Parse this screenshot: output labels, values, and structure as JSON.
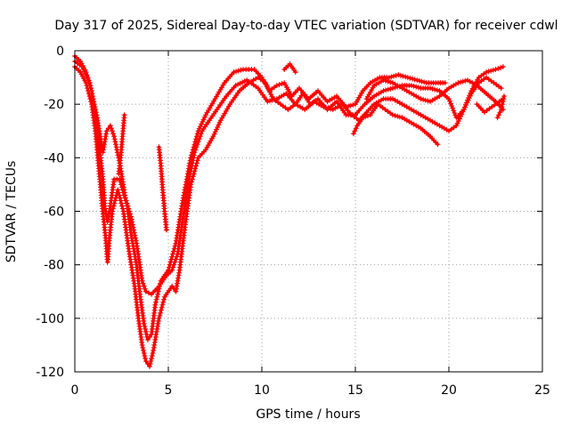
{
  "chart_data": {
    "type": "scatter",
    "title": "Day 317 of 2025, Sidereal Day-to-day VTEC variation (SDTVAR) for receiver cdwl",
    "xlabel": "GPS time / hours",
    "ylabel": "SDTVAR / TECUs",
    "xlim": [
      0,
      25
    ],
    "ylim": [
      -120,
      0
    ],
    "xticks": [
      0,
      5,
      10,
      15,
      20,
      25
    ],
    "yticks": [
      0,
      -20,
      -40,
      -60,
      -80,
      -100,
      -120
    ],
    "grid": true,
    "marker": "+",
    "color": "#ff0000",
    "series": [
      {
        "name": "trace-1",
        "points": [
          [
            0,
            -2
          ],
          [
            0.3,
            -4
          ],
          [
            0.6,
            -8
          ],
          [
            0.9,
            -15
          ],
          [
            1.1,
            -25
          ],
          [
            1.3,
            -35
          ],
          [
            1.5,
            -48
          ],
          [
            1.6,
            -58
          ],
          [
            1.75,
            -64
          ],
          [
            1.9,
            -58
          ],
          [
            2.1,
            -48
          ],
          [
            2.4,
            -48
          ],
          [
            2.8,
            -58
          ],
          [
            3.0,
            -68
          ],
          [
            3.3,
            -80
          ],
          [
            3.5,
            -92
          ],
          [
            3.7,
            -102
          ],
          [
            3.9,
            -108
          ],
          [
            4.1,
            -106
          ],
          [
            4.3,
            -95
          ],
          [
            4.6,
            -86
          ],
          [
            5.0,
            -82
          ],
          [
            5.4,
            -72
          ],
          [
            5.8,
            -55
          ],
          [
            6.2,
            -40
          ],
          [
            6.6,
            -30
          ],
          [
            7.0,
            -24
          ],
          [
            7.5,
            -18
          ],
          [
            8.0,
            -12
          ],
          [
            8.5,
            -8
          ],
          [
            9.0,
            -7
          ],
          [
            9.6,
            -7
          ],
          [
            10.0,
            -10
          ],
          [
            10.4,
            -15
          ],
          [
            10.8,
            -13
          ],
          [
            11.2,
            -12
          ],
          [
            11.6,
            -17
          ],
          [
            12.0,
            -14
          ],
          [
            12.5,
            -18
          ],
          [
            13.0,
            -15
          ],
          [
            13.5,
            -19
          ],
          [
            14.0,
            -17
          ],
          [
            14.5,
            -21
          ],
          [
            15.0,
            -20
          ],
          [
            15.4,
            -15
          ],
          [
            15.8,
            -12
          ],
          [
            16.3,
            -10
          ],
          [
            16.8,
            -10
          ],
          [
            17.3,
            -9
          ],
          [
            17.8,
            -10
          ],
          [
            18.3,
            -11
          ],
          [
            18.8,
            -12
          ],
          [
            19.3,
            -12
          ],
          [
            19.8,
            -12
          ]
        ]
      },
      {
        "name": "trace-2",
        "points": [
          [
            0,
            -6
          ],
          [
            0.3,
            -8
          ],
          [
            0.6,
            -12
          ],
          [
            0.9,
            -20
          ],
          [
            1.1,
            -30
          ],
          [
            1.3,
            -45
          ],
          [
            1.5,
            -60
          ],
          [
            1.65,
            -70
          ],
          [
            1.75,
            -79
          ],
          [
            1.85,
            -70
          ],
          [
            2.0,
            -60
          ],
          [
            2.3,
            -52
          ],
          [
            2.6,
            -60
          ],
          [
            2.9,
            -75
          ],
          [
            3.2,
            -88
          ],
          [
            3.4,
            -100
          ],
          [
            3.6,
            -110
          ],
          [
            3.8,
            -116
          ],
          [
            4.0,
            -118
          ],
          [
            4.2,
            -112
          ],
          [
            4.5,
            -100
          ],
          [
            4.8,
            -92
          ],
          [
            5.2,
            -88
          ],
          [
            5.4,
            -90
          ],
          [
            5.6,
            -82
          ],
          [
            5.9,
            -65
          ],
          [
            6.2,
            -50
          ],
          [
            6.6,
            -40
          ],
          [
            7.0,
            -37
          ],
          [
            7.4,
            -32
          ],
          [
            7.8,
            -26
          ],
          [
            8.3,
            -20
          ],
          [
            8.8,
            -15
          ],
          [
            9.3,
            -12
          ],
          [
            9.8,
            -10
          ],
          [
            10.2,
            -12
          ],
          [
            10.6,
            -18
          ],
          [
            11.0,
            -20
          ],
          [
            11.4,
            -22
          ],
          [
            11.8,
            -20
          ],
          [
            12.2,
            -16
          ],
          [
            12.6,
            -20
          ],
          [
            13.0,
            -18
          ],
          [
            13.5,
            -22
          ],
          [
            14.0,
            -19
          ],
          [
            14.5,
            -24
          ],
          [
            15.0,
            -24
          ],
          [
            15.5,
            -20
          ],
          [
            16.0,
            -17
          ],
          [
            16.5,
            -15
          ],
          [
            17.0,
            -14
          ],
          [
            17.5,
            -13
          ],
          [
            18.0,
            -13
          ],
          [
            18.5,
            -14
          ],
          [
            19.0,
            -14
          ],
          [
            19.5,
            -15
          ],
          [
            20.0,
            -18
          ],
          [
            20.4,
            -25
          ],
          [
            20.8,
            -22
          ],
          [
            21.2,
            -15
          ],
          [
            21.6,
            -10
          ],
          [
            22.0,
            -8
          ],
          [
            22.5,
            -7
          ],
          [
            22.9,
            -6
          ]
        ]
      },
      {
        "name": "trace-3",
        "points": [
          [
            0,
            -4
          ],
          [
            0.4,
            -6
          ],
          [
            0.8,
            -12
          ],
          [
            1.2,
            -25
          ],
          [
            1.5,
            -38
          ],
          [
            1.7,
            -30
          ],
          [
            1.9,
            -28
          ],
          [
            2.1,
            -32
          ],
          [
            2.4,
            -42
          ],
          [
            2.7,
            -55
          ],
          [
            3.0,
            -62
          ],
          [
            3.3,
            -72
          ],
          [
            3.6,
            -86
          ],
          [
            3.8,
            -90
          ],
          [
            4.1,
            -91
          ],
          [
            4.5,
            -88
          ],
          [
            4.9,
            -84
          ],
          [
            5.2,
            -82
          ],
          [
            5.5,
            -76
          ],
          [
            5.8,
            -62
          ],
          [
            6.1,
            -48
          ],
          [
            6.4,
            -38
          ],
          [
            6.8,
            -30
          ],
          [
            7.2,
            -26
          ],
          [
            7.6,
            -22
          ],
          [
            8.1,
            -17
          ],
          [
            8.6,
            -13
          ],
          [
            9.2,
            -11
          ],
          [
            9.8,
            -14
          ],
          [
            10.3,
            -19
          ],
          [
            10.8,
            -18
          ],
          [
            11.3,
            -16
          ],
          [
            11.8,
            -20
          ],
          [
            12.3,
            -22
          ],
          [
            12.8,
            -19
          ],
          [
            13.3,
            -21
          ],
          [
            13.8,
            -22
          ],
          [
            14.3,
            -20
          ],
          [
            14.8,
            -24
          ],
          [
            15.2,
            -26
          ],
          [
            15.6,
            -23
          ],
          [
            16.0,
            -20
          ],
          [
            16.5,
            -18
          ],
          [
            17.0,
            -18
          ],
          [
            17.5,
            -20
          ],
          [
            18.0,
            -22
          ],
          [
            18.5,
            -24
          ],
          [
            19.0,
            -26
          ],
          [
            19.5,
            -28
          ],
          [
            20.0,
            -30
          ],
          [
            20.4,
            -28
          ],
          [
            20.8,
            -22
          ],
          [
            21.2,
            -16
          ],
          [
            21.6,
            -12
          ],
          [
            22.0,
            -10
          ],
          [
            22.4,
            -12
          ],
          [
            22.8,
            -14
          ]
        ]
      },
      {
        "name": "trace-4",
        "points": [
          [
            14.9,
            -31
          ],
          [
            15.1,
            -28
          ],
          [
            15.4,
            -25
          ],
          [
            15.8,
            -24
          ],
          [
            16.2,
            -20
          ],
          [
            16.6,
            -22
          ],
          [
            17.0,
            -24
          ],
          [
            17.5,
            -25
          ],
          [
            18.0,
            -27
          ],
          [
            18.5,
            -29
          ],
          [
            19.0,
            -32
          ],
          [
            19.4,
            -35
          ]
        ]
      },
      {
        "name": "trace-5",
        "points": [
          [
            15.6,
            -18
          ],
          [
            16.0,
            -13
          ],
          [
            16.5,
            -11
          ],
          [
            17.0,
            -12
          ],
          [
            17.5,
            -14
          ],
          [
            18.0,
            -16
          ],
          [
            18.5,
            -18
          ],
          [
            19.0,
            -19
          ],
          [
            19.5,
            -17
          ],
          [
            20.0,
            -14
          ],
          [
            20.5,
            -12
          ],
          [
            21.0,
            -11
          ],
          [
            21.5,
            -13
          ],
          [
            22.0,
            -16
          ],
          [
            22.5,
            -19
          ],
          [
            22.9,
            -22
          ]
        ]
      },
      {
        "name": "trace-6",
        "points": [
          [
            21.5,
            -20
          ],
          [
            21.9,
            -23
          ],
          [
            22.3,
            -21
          ],
          [
            22.7,
            -19
          ],
          [
            22.9,
            -18
          ]
        ]
      },
      {
        "name": "trace-7",
        "points": [
          [
            22.6,
            -25
          ],
          [
            22.8,
            -22
          ],
          [
            22.95,
            -17
          ]
        ]
      },
      {
        "name": "trace-8",
        "points": [
          [
            11.2,
            -7
          ],
          [
            11.5,
            -5
          ],
          [
            11.8,
            -8
          ]
        ]
      },
      {
        "name": "trace-9",
        "points": [
          [
            2.65,
            -24
          ],
          [
            2.55,
            -32
          ],
          [
            2.45,
            -40
          ],
          [
            2.35,
            -46
          ]
        ]
      },
      {
        "name": "trace-10",
        "points": [
          [
            4.5,
            -36
          ],
          [
            4.6,
            -43
          ],
          [
            4.7,
            -52
          ],
          [
            4.8,
            -60
          ],
          [
            4.9,
            -67
          ]
        ]
      }
    ]
  }
}
